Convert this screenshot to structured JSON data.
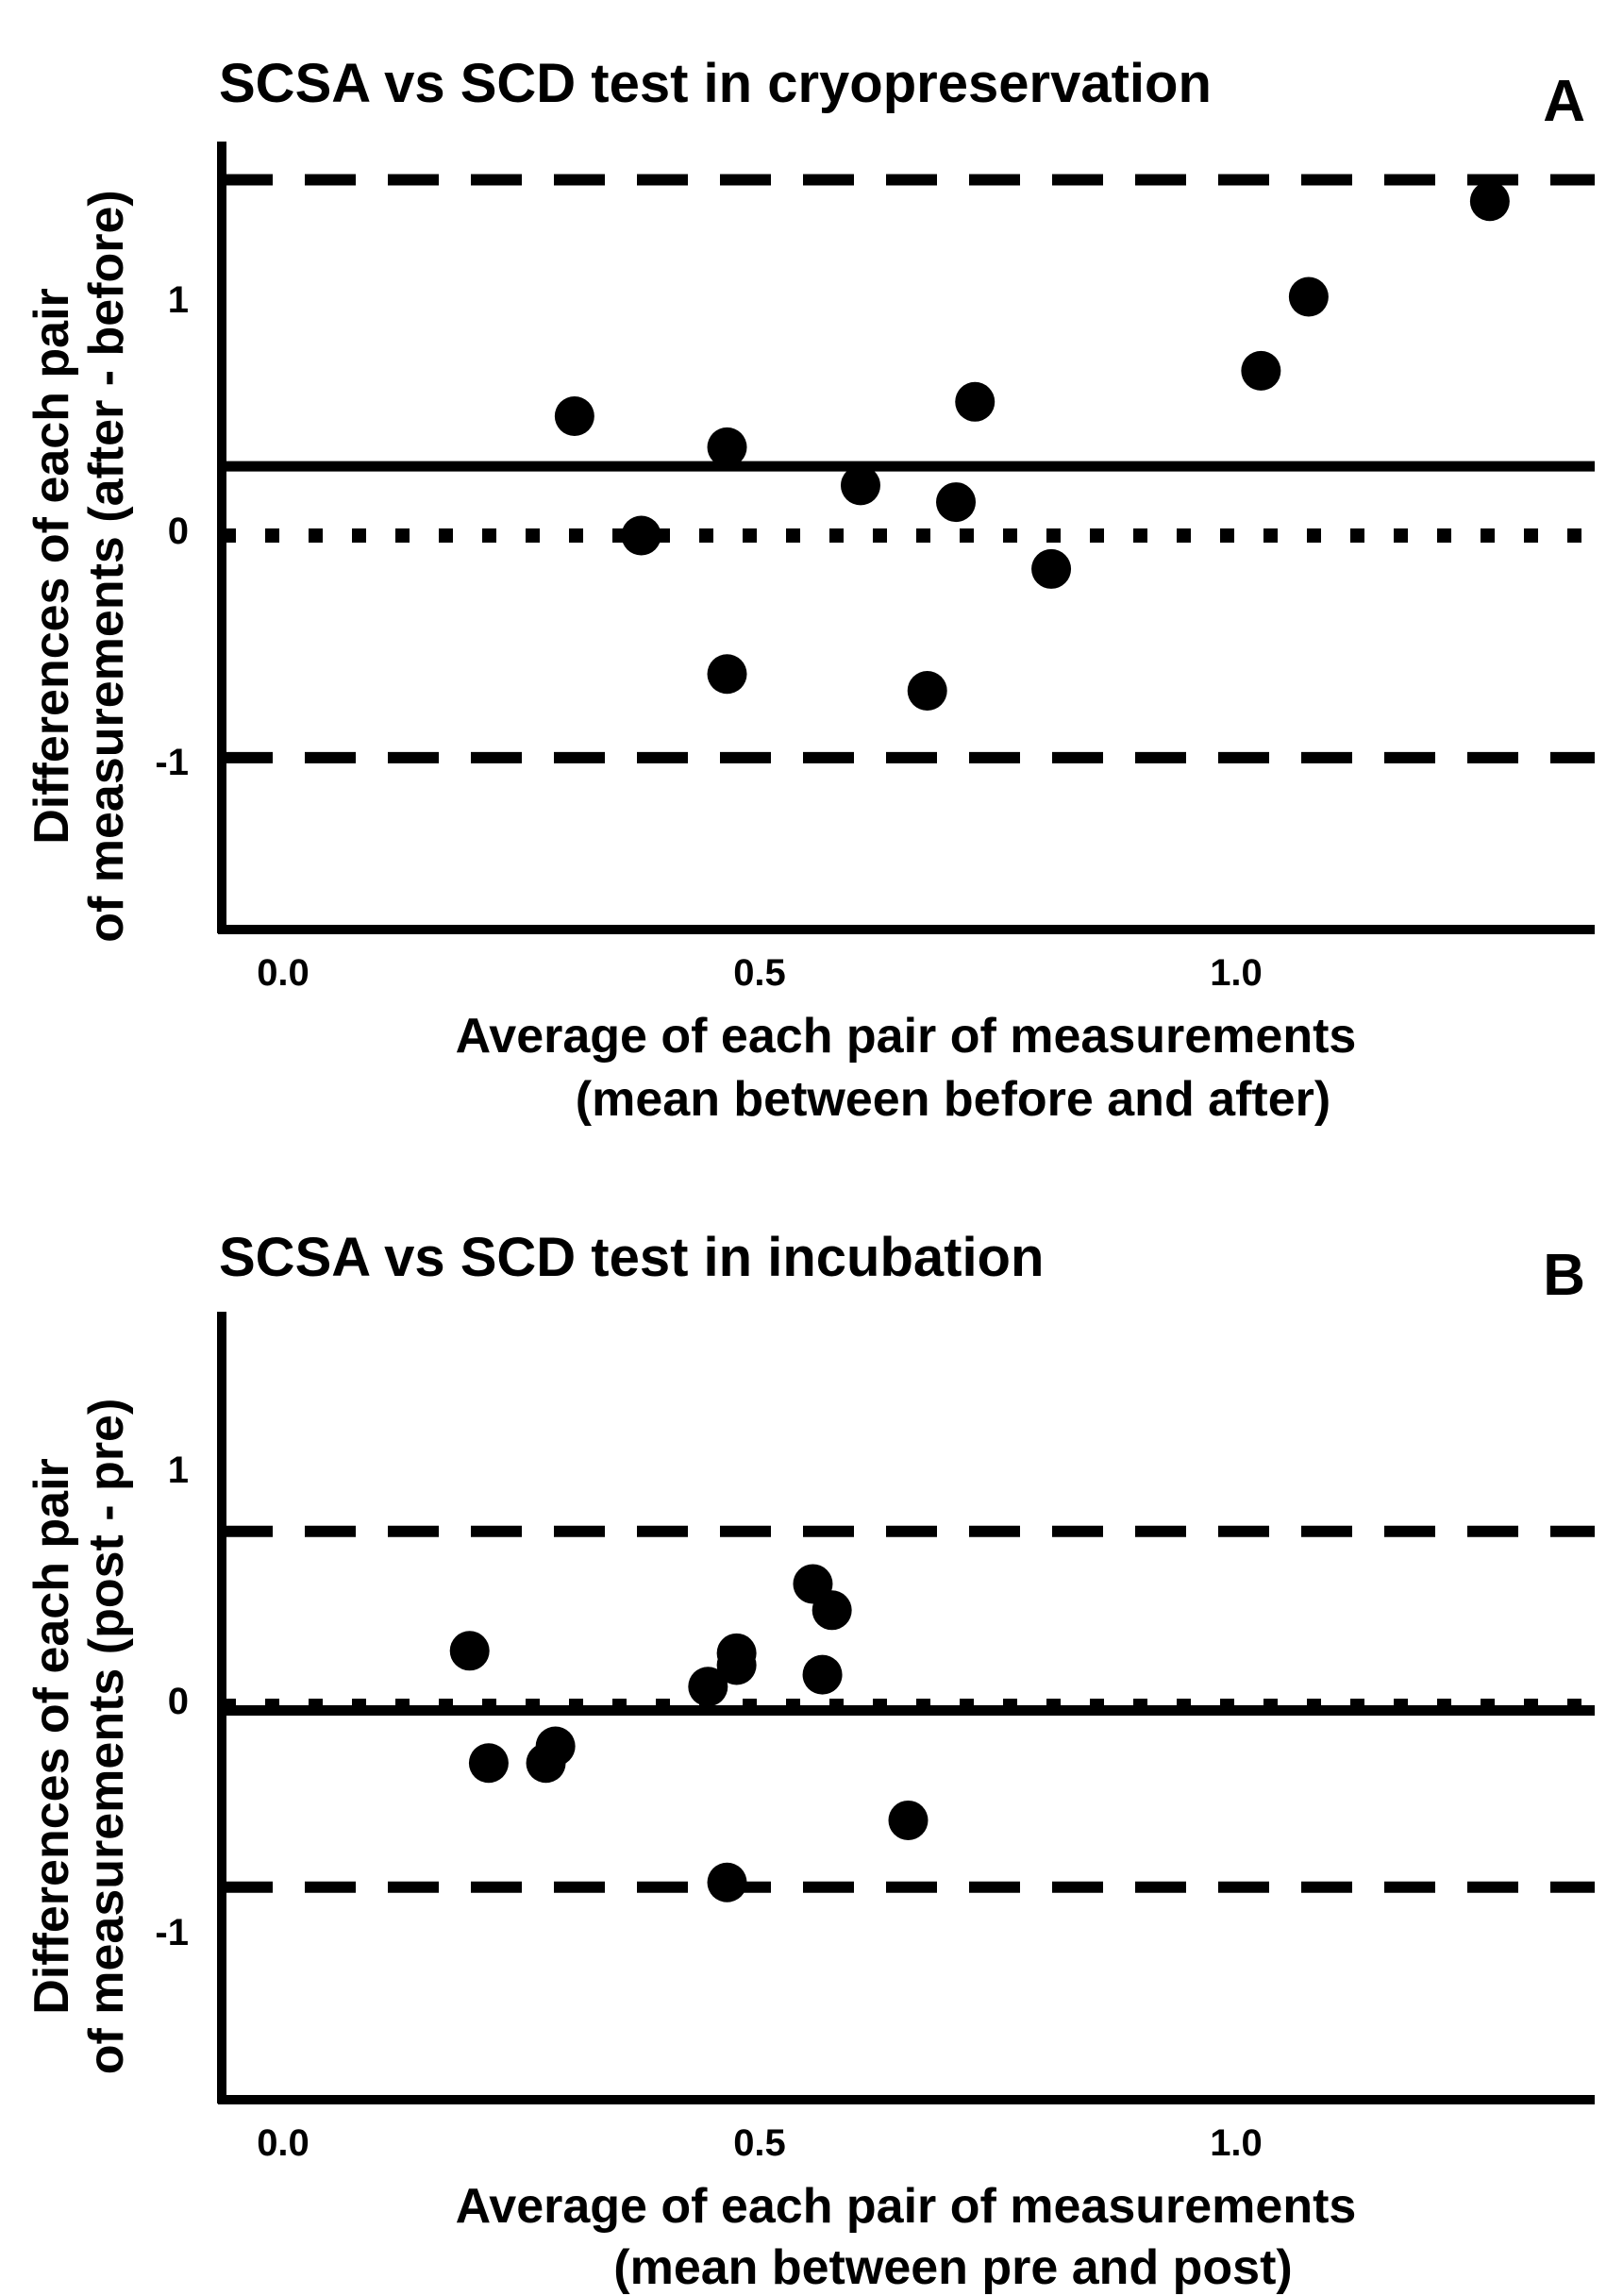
{
  "chart_data": [
    {
      "type": "scatter",
      "panel_label": "A",
      "title": "SCSA vs SCD test in cryopreservation",
      "xlabel": [
        "Average of each pair of measurements",
        "(mean between before and after)"
      ],
      "ylabel": [
        "Differences of each pair",
        "of measurements (after - before)"
      ],
      "xlim": [
        -0.06,
        1.38
      ],
      "ylim": [
        -1.65,
        1.65
      ],
      "x_ticks": [
        0.0,
        0.5,
        1.0
      ],
      "x_tick_labels": [
        "0.0",
        "0.5",
        "1.0"
      ],
      "y_ticks": [
        1,
        0,
        -1
      ],
      "y_tick_labels": [
        "1",
        "0",
        "-1"
      ],
      "mean_line": 0.29,
      "loa_upper": 1.49,
      "loa_lower": -0.93,
      "zero_line": 0,
      "grid": false,
      "points": [
        {
          "x": 0.31,
          "y": 0.5
        },
        {
          "x": 0.38,
          "y": 0.0
        },
        {
          "x": 0.47,
          "y": 0.37
        },
        {
          "x": 0.47,
          "y": -0.58
        },
        {
          "x": 0.61,
          "y": 0.21
        },
        {
          "x": 0.68,
          "y": -0.65
        },
        {
          "x": 0.71,
          "y": 0.14
        },
        {
          "x": 0.73,
          "y": 0.56
        },
        {
          "x": 0.81,
          "y": -0.14
        },
        {
          "x": 1.03,
          "y": 0.69
        },
        {
          "x": 1.08,
          "y": 1.0
        },
        {
          "x": 1.27,
          "y": 1.4
        }
      ]
    },
    {
      "type": "scatter",
      "panel_label": "B",
      "title": "SCSA vs SCD test in incubation",
      "xlabel": [
        "Average of each pair of measurements",
        "(mean between pre and post)"
      ],
      "ylabel": [
        "Differences of each pair",
        "of measurements (post - pre)"
      ],
      "xlim": [
        -0.06,
        1.38
      ],
      "ylim": [
        -1.65,
        1.65
      ],
      "x_ticks": [
        0.0,
        0.5,
        1.0
      ],
      "x_tick_labels": [
        "0.0",
        "0.5",
        "1.0"
      ],
      "y_ticks": [
        1,
        0,
        -1
      ],
      "y_tick_labels": [
        "1",
        "0",
        "-1"
      ],
      "mean_line": -0.02,
      "loa_upper": 0.73,
      "loa_lower": -0.76,
      "zero_line": 0,
      "grid": false,
      "points": [
        {
          "x": 0.2,
          "y": 0.23
        },
        {
          "x": 0.22,
          "y": -0.24
        },
        {
          "x": 0.28,
          "y": -0.24
        },
        {
          "x": 0.29,
          "y": -0.17
        },
        {
          "x": 0.45,
          "y": 0.08
        },
        {
          "x": 0.48,
          "y": 0.17
        },
        {
          "x": 0.48,
          "y": 0.22
        },
        {
          "x": 0.47,
          "y": -0.74
        },
        {
          "x": 0.56,
          "y": 0.51
        },
        {
          "x": 0.57,
          "y": 0.13
        },
        {
          "x": 0.58,
          "y": 0.4
        },
        {
          "x": 0.66,
          "y": -0.48
        }
      ]
    }
  ]
}
